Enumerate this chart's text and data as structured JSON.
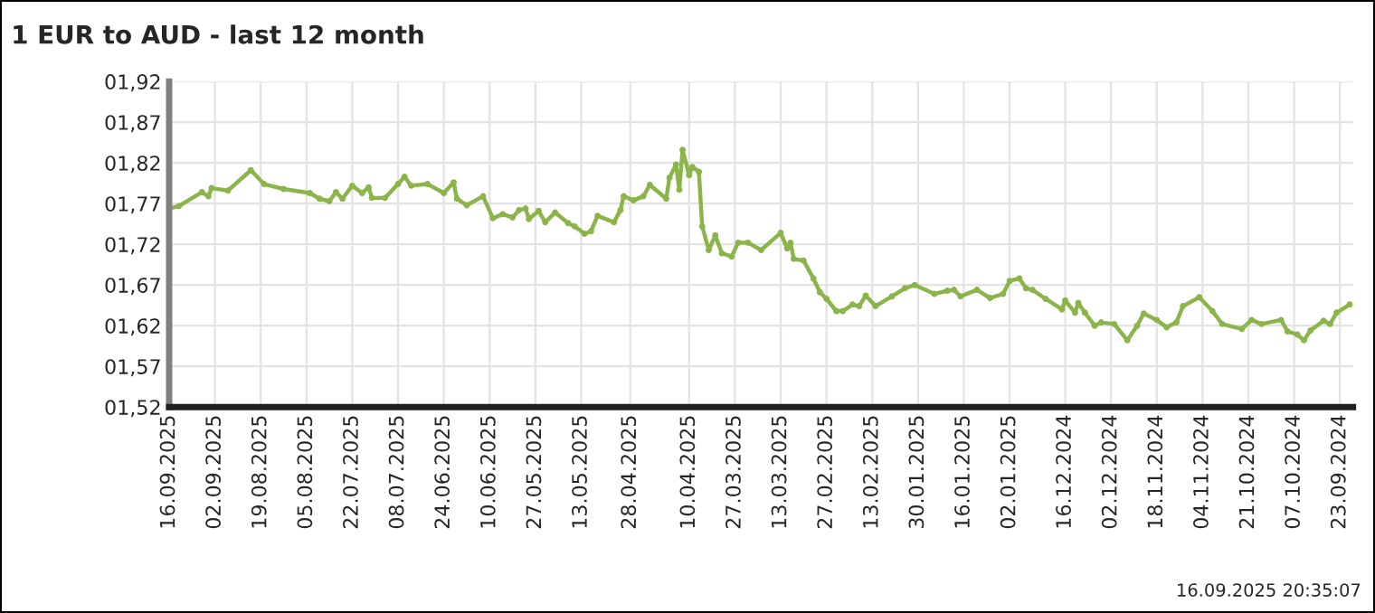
{
  "chart_data": {
    "type": "line",
    "title": "1 EUR to AUD - last 12 month",
    "annotations": [
      "16.09.2025 20:35:07"
    ],
    "x": [
      "2025-09-16",
      "2025-09-13",
      "2025-09-06",
      "2025-09-04",
      "2025-09-03",
      "2025-08-29",
      "2025-08-22",
      "2025-08-18",
      "2025-08-12",
      "2025-08-04",
      "2025-08-01",
      "2025-07-29",
      "2025-07-27",
      "2025-07-25",
      "2025-07-22",
      "2025-07-19",
      "2025-07-17",
      "2025-07-16",
      "2025-07-12",
      "2025-07-08",
      "2025-07-06",
      "2025-07-04",
      "2025-06-29",
      "2025-06-24",
      "2025-06-21",
      "2025-06-20",
      "2025-06-17",
      "2025-06-12",
      "2025-06-09",
      "2025-06-06",
      "2025-06-03",
      "2025-06-01",
      "2025-05-30",
      "2025-05-29",
      "2025-05-26",
      "2025-05-24",
      "2025-05-21",
      "2025-05-17",
      "2025-05-15",
      "2025-05-12",
      "2025-05-10",
      "2025-05-08",
      "2025-05-03",
      "2025-05-01",
      "2025-04-30",
      "2025-04-27",
      "2025-04-24",
      "2025-04-22",
      "2025-04-17",
      "2025-04-16",
      "2025-04-14",
      "2025-04-13",
      "2025-04-12",
      "2025-04-10",
      "2025-04-09",
      "2025-04-07",
      "2025-04-06",
      "2025-04-04",
      "2025-04-02",
      "2025-03-31",
      "2025-03-28",
      "2025-03-26",
      "2025-03-23",
      "2025-03-19",
      "2025-03-13",
      "2025-03-11",
      "2025-03-10",
      "2025-03-09",
      "2025-03-06",
      "2025-03-03",
      "2025-03-01",
      "2025-02-27",
      "2025-02-24",
      "2025-02-22",
      "2025-02-19",
      "2025-02-17",
      "2025-02-15",
      "2025-02-12",
      "2025-02-07",
      "2025-02-03",
      "2025-01-31",
      "2025-01-25",
      "2025-01-21",
      "2025-01-19",
      "2025-01-17",
      "2025-01-12",
      "2025-01-08",
      "2025-01-04",
      "2025-01-02",
      "2024-12-30",
      "2024-12-28",
      "2024-12-26",
      "2024-12-22",
      "2024-12-17",
      "2024-12-16",
      "2024-12-13",
      "2024-12-12",
      "2024-12-10",
      "2024-12-07",
      "2024-12-05",
      "2024-12-01",
      "2024-11-27",
      "2024-11-24",
      "2024-11-22",
      "2024-11-18",
      "2024-11-15",
      "2024-11-12",
      "2024-11-10",
      "2024-11-05",
      "2024-11-01",
      "2024-10-29",
      "2024-10-23",
      "2024-10-20",
      "2024-10-17",
      "2024-10-11",
      "2024-10-09",
      "2024-10-06",
      "2024-10-04",
      "2024-10-02",
      "2024-09-28",
      "2024-09-26",
      "2024-09-24",
      "2024-09-20"
    ],
    "series": [
      {
        "color": "#8bb54a",
        "values": [
          1.764,
          1.767,
          1.784,
          1.779,
          1.789,
          1.786,
          1.811,
          1.794,
          1.788,
          1.783,
          1.776,
          1.773,
          1.784,
          1.776,
          1.792,
          1.783,
          1.79,
          1.777,
          1.777,
          1.794,
          1.803,
          1.792,
          1.794,
          1.783,
          1.796,
          1.776,
          1.768,
          1.779,
          1.752,
          1.757,
          1.753,
          1.762,
          1.764,
          1.751,
          1.761,
          1.747,
          1.759,
          1.746,
          1.742,
          1.733,
          1.736,
          1.755,
          1.747,
          1.762,
          1.779,
          1.774,
          1.779,
          1.793,
          1.776,
          1.802,
          1.818,
          1.787,
          1.836,
          1.805,
          1.815,
          1.809,
          1.742,
          1.713,
          1.731,
          1.709,
          1.705,
          1.722,
          1.722,
          1.713,
          1.734,
          1.715,
          1.722,
          1.702,
          1.7,
          1.678,
          1.661,
          1.653,
          1.638,
          1.638,
          1.646,
          1.644,
          1.657,
          1.644,
          1.656,
          1.666,
          1.67,
          1.659,
          1.663,
          1.664,
          1.656,
          1.664,
          1.654,
          1.659,
          1.675,
          1.678,
          1.666,
          1.664,
          1.653,
          1.64,
          1.651,
          1.636,
          1.648,
          1.636,
          1.62,
          1.624,
          1.622,
          1.602,
          1.62,
          1.635,
          1.627,
          1.618,
          1.624,
          1.644,
          1.655,
          1.638,
          1.622,
          1.616,
          1.627,
          1.622,
          1.627,
          1.613,
          1.609,
          1.602,
          1.614,
          1.626,
          1.622,
          1.636,
          1.646
        ]
      }
    ],
    "xlim": [
      "2025-09-16",
      "2024-09-19"
    ],
    "xticks": [
      {
        "value": "2025-09-16",
        "label": "16.09.2025"
      },
      {
        "value": "2025-09-02",
        "label": "02.09.2025"
      },
      {
        "value": "2025-08-19",
        "label": "19.08.2025"
      },
      {
        "value": "2025-08-05",
        "label": "05.08.2025"
      },
      {
        "value": "2025-07-22",
        "label": "22.07.2025"
      },
      {
        "value": "2025-07-08",
        "label": "08.07.2025"
      },
      {
        "value": "2025-06-24",
        "label": "24.06.2025"
      },
      {
        "value": "2025-06-10",
        "label": "10.06.2025"
      },
      {
        "value": "2025-05-27",
        "label": "27.05.2025"
      },
      {
        "value": "2025-05-13",
        "label": "13.05.2025"
      },
      {
        "value": "2025-04-28",
        "label": "28.04.2025"
      },
      {
        "value": "2025-04-10",
        "label": "10.04.2025"
      },
      {
        "value": "2025-03-27",
        "label": "27.03.2025"
      },
      {
        "value": "2025-03-13",
        "label": "13.03.2025"
      },
      {
        "value": "2025-02-27",
        "label": "27.02.2025"
      },
      {
        "value": "2025-02-13",
        "label": "13.02.2025"
      },
      {
        "value": "2025-01-30",
        "label": "30.01.2025"
      },
      {
        "value": "2025-01-16",
        "label": "16.01.2025"
      },
      {
        "value": "2025-01-02",
        "label": "02.01.2025"
      },
      {
        "value": "2024-12-16",
        "label": "16.12.2024"
      },
      {
        "value": "2024-12-02",
        "label": "02.12.2024"
      },
      {
        "value": "2024-11-18",
        "label": "18.11.2024"
      },
      {
        "value": "2024-11-04",
        "label": "04.11.2024"
      },
      {
        "value": "2024-10-21",
        "label": "21.10.2024"
      },
      {
        "value": "2024-10-07",
        "label": "07.10.2024"
      },
      {
        "value": "2024-09-23",
        "label": "23.09.2024"
      }
    ],
    "ylim": [
      1.52,
      1.92
    ],
    "yticks": [
      {
        "value": 1.52,
        "label": "01,52"
      },
      {
        "value": 1.57,
        "label": "01,57"
      },
      {
        "value": 1.62,
        "label": "01,62"
      },
      {
        "value": 1.67,
        "label": "01,67"
      },
      {
        "value": 1.72,
        "label": "01,72"
      },
      {
        "value": 1.77,
        "label": "01,77"
      },
      {
        "value": 1.82,
        "label": "01,82"
      },
      {
        "value": 1.87,
        "label": "01,87"
      },
      {
        "value": 1.92,
        "label": "01,92"
      }
    ],
    "grid": true,
    "marker": "circle",
    "line_style": "solid",
    "legend": false
  }
}
